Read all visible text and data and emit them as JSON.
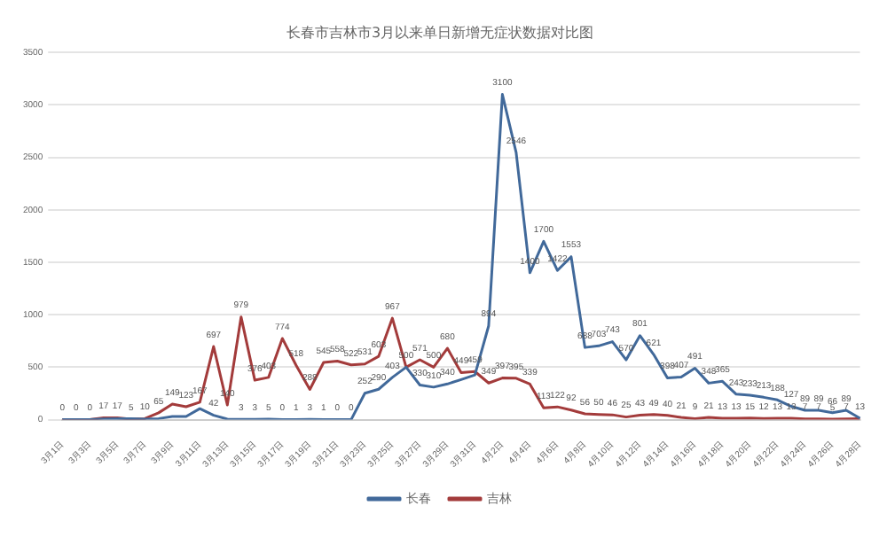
{
  "chart_data": {
    "type": "line",
    "title": "长春市吉林市3月以来单日新增无症状数据对比图",
    "categories": [
      "3月1日",
      null,
      "3月3日",
      null,
      "3月5日",
      null,
      "3月7日",
      null,
      "3月9日",
      null,
      "3月11日",
      null,
      "3月13日",
      null,
      "3月15日",
      null,
      "3月17日",
      null,
      "3月19日",
      null,
      "3月21日",
      null,
      "3月23日",
      null,
      "3月25日",
      null,
      "3月27日",
      null,
      "3月29日",
      null,
      "3月31日",
      null,
      "4月2日",
      null,
      "4月4日",
      null,
      "4月6日",
      null,
      "4月8日",
      null,
      "4月10日",
      null,
      "4月12日",
      null,
      "4月14日",
      null,
      "4月16日",
      null,
      "4月18日",
      null,
      "4月20日",
      null,
      "4月22日",
      null,
      "4月24日",
      null,
      "4月26日",
      null,
      "4月28日"
    ],
    "series": [
      {
        "name": "长春",
        "color": "#41699a",
        "values": [
          0,
          0,
          0,
          6,
          10,
          10,
          5,
          10,
          30,
          30,
          105,
          42,
          5,
          3,
          3,
          5,
          0,
          1,
          3,
          1,
          0,
          0,
          252,
          290,
          403,
          500,
          330,
          310,
          340,
          382,
          426,
          894,
          3100,
          2546,
          1400,
          1700,
          1422,
          1553,
          688,
          703,
          743,
          570,
          801,
          621,
          398,
          407,
          491,
          348,
          365,
          243,
          233,
          213,
          188,
          127,
          89,
          89,
          66,
          89,
          13
        ],
        "value_labels": [
          null,
          null,
          null,
          null,
          null,
          null,
          null,
          null,
          null,
          null,
          null,
          "42",
          null,
          "3",
          "3",
          "5",
          "0",
          "1",
          "3",
          "1",
          "0",
          "0",
          "252",
          "290",
          "403",
          "500",
          "330",
          "310",
          "340",
          null,
          null,
          "894",
          "3100",
          "2546",
          "1400",
          "1700",
          "1422",
          "1553",
          "688",
          "703",
          "743",
          "570",
          "801",
          "621",
          "398",
          "407",
          "491",
          "348",
          "365",
          "243",
          "233",
          "213",
          "188",
          "127",
          "89",
          "89",
          "66",
          "89",
          "13"
        ]
      },
      {
        "name": "吉林",
        "color": "#a33b3b",
        "values": [
          0,
          0,
          0,
          17,
          17,
          5,
          10,
          65,
          149,
          123,
          167,
          697,
          140,
          979,
          376,
          403,
          774,
          518,
          288,
          545,
          558,
          522,
          531,
          603,
          967,
          500,
          571,
          500,
          680,
          449,
          459,
          349,
          397,
          395,
          339,
          113,
          122,
          92,
          56,
          50,
          46,
          25,
          43,
          49,
          40,
          21,
          9,
          21,
          13,
          13,
          15,
          12,
          13,
          13,
          7,
          7,
          5,
          7,
          10
        ],
        "value_labels": [
          "0",
          "0",
          "0",
          "17",
          "17",
          "5",
          "10",
          "65",
          "149",
          "123",
          "167",
          "697",
          "140",
          "979",
          "376",
          "403",
          "774",
          "518",
          "288",
          "545",
          "558",
          "522",
          "531",
          "603",
          "967",
          null,
          "571",
          "500",
          "680",
          "449",
          "459",
          "349",
          "397",
          "395",
          "339",
          "113",
          "122",
          "92",
          "56",
          "50",
          "46",
          "25",
          "43",
          "49",
          "40",
          "21",
          "9",
          "21",
          "13",
          "13",
          "15",
          "12",
          "13",
          "13",
          "7",
          "7",
          "5",
          "7",
          null
        ]
      }
    ],
    "ylim": [
      0,
      3500
    ],
    "yticks": [
      0,
      500,
      1000,
      1500,
      2000,
      2500,
      3000,
      3500
    ],
    "grid": "y",
    "legend": "bottom",
    "marker": "none"
  }
}
